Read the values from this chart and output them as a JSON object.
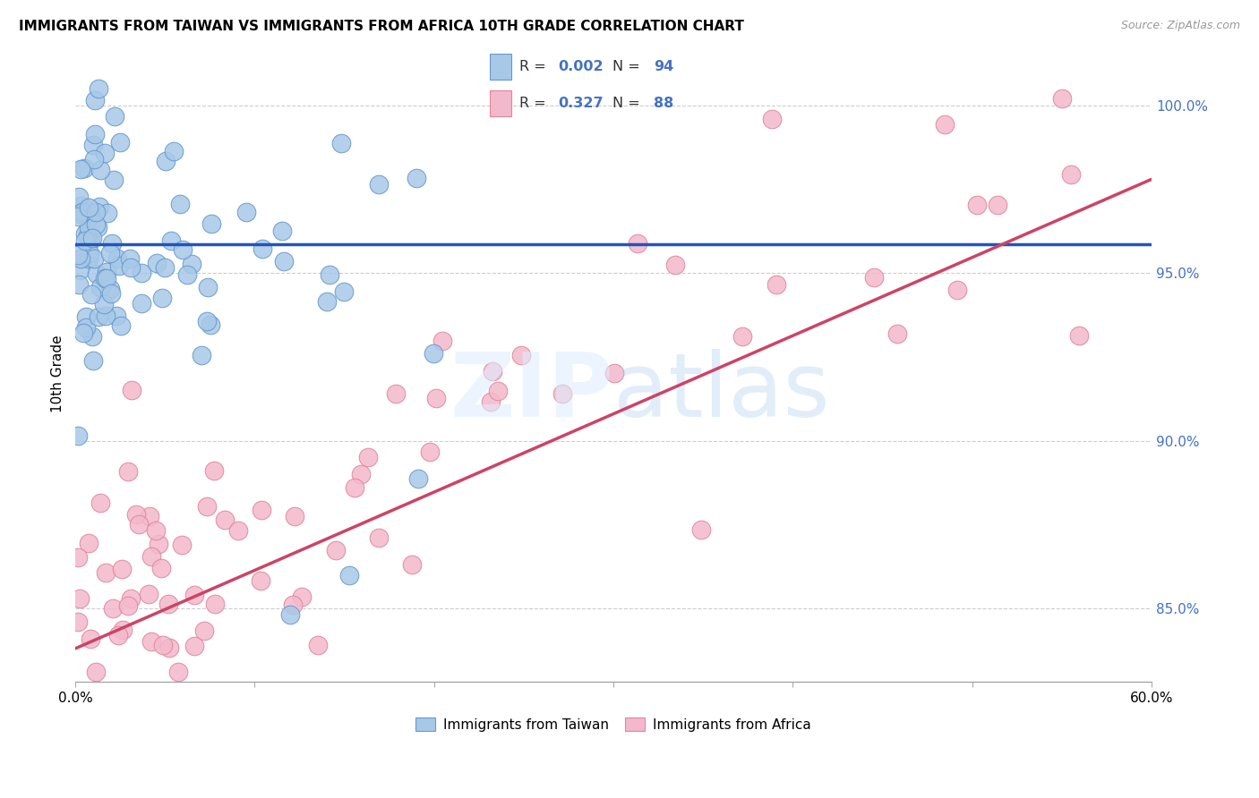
{
  "title": "IMMIGRANTS FROM TAIWAN VS IMMIGRANTS FROM AFRICA 10TH GRADE CORRELATION CHART",
  "source": "Source: ZipAtlas.com",
  "ylabel": "10th Grade",
  "xlim": [
    0.0,
    0.6
  ],
  "ylim": [
    0.828,
    1.012
  ],
  "ytick_values": [
    0.85,
    0.9,
    0.95,
    1.0
  ],
  "ytick_labels": [
    "85.0%",
    "90.0%",
    "95.0%",
    "100.0%"
  ],
  "xtick_values": [
    0.0,
    0.1,
    0.2,
    0.3,
    0.4,
    0.5,
    0.6
  ],
  "taiwan_color": "#a8c8e8",
  "taiwan_edge_color": "#6699cc",
  "africa_color": "#f4b8cc",
  "africa_edge_color": "#dd8899",
  "taiwan_line_color": "#2255bb",
  "africa_line_color": "#cc4466",
  "right_axis_color": "#4472c4",
  "grid_color": "#c8c8c8",
  "background_color": "#ffffff",
  "taiwan_R": "0.002",
  "taiwan_N": "94",
  "africa_R": "0.327",
  "africa_N": "88",
  "taiwan_trend_x0": 0.0,
  "taiwan_trend_x1": 0.6,
  "taiwan_trend_y0": 0.9585,
  "taiwan_trend_y1": 0.9585,
  "africa_trend_x0": 0.0,
  "africa_trend_x1": 0.6,
  "africa_trend_y0": 0.838,
  "africa_trend_y1": 0.978
}
